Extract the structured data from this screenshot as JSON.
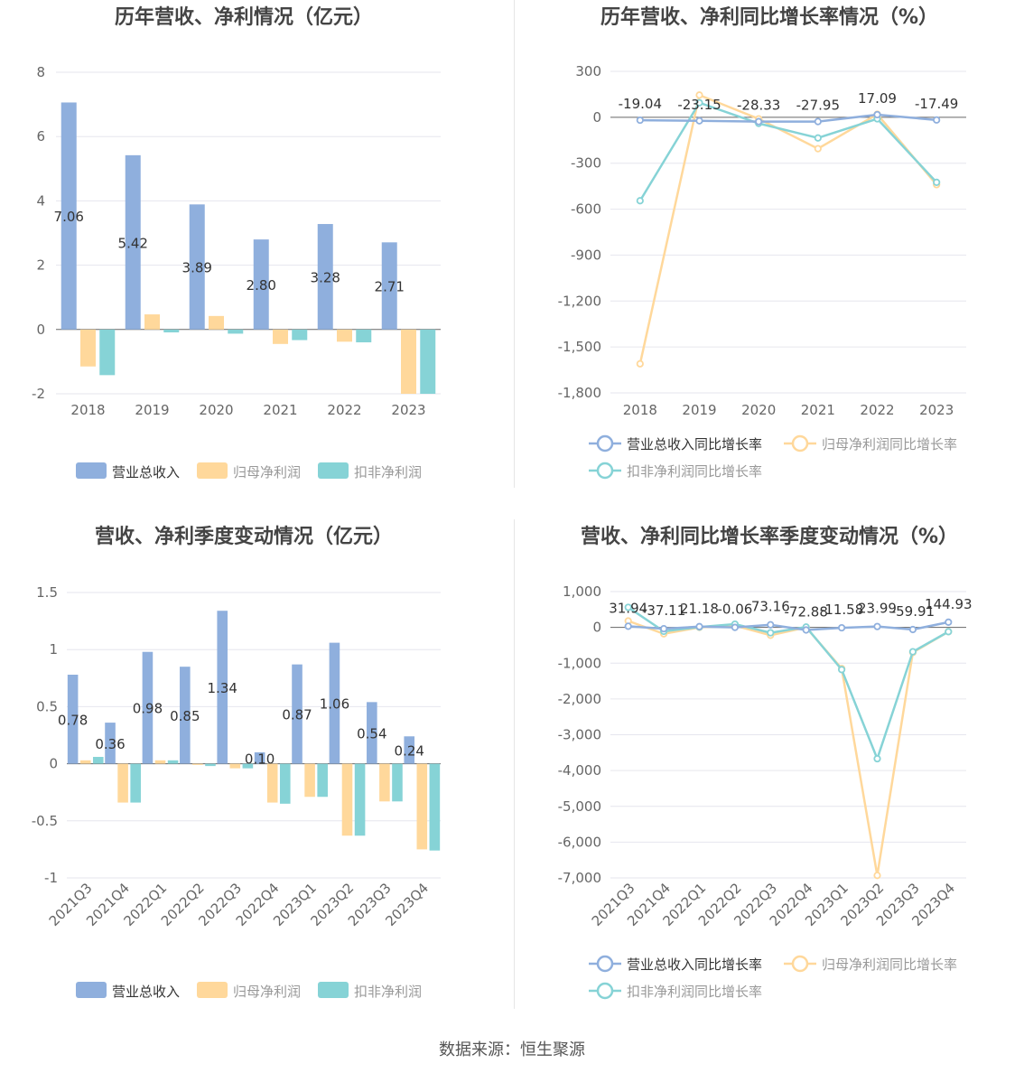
{
  "source_text": "数据来源：恒生聚源",
  "colors": {
    "revenue": "#8fafdd",
    "net_profit": "#ffd89b",
    "deducted_profit": "#86d3d6",
    "grid": "#e6e6ee",
    "axis_text": "#666666",
    "title": "#444444"
  },
  "chart_data": [
    {
      "id": "annual-amount",
      "type": "bar",
      "title": "历年营收、净利情况（亿元）",
      "categories": [
        "2018",
        "2019",
        "2020",
        "2021",
        "2022",
        "2023"
      ],
      "ylim": [
        -2,
        8
      ],
      "yticks": [
        -2,
        0,
        2,
        4,
        6,
        8
      ],
      "ytick_labels": [
        "-2",
        "0",
        "2",
        "4",
        "6",
        "8"
      ],
      "series": [
        {
          "name": "营业总收入",
          "values": [
            7.06,
            5.42,
            3.89,
            2.8,
            3.28,
            2.71
          ],
          "labels": [
            "7.06",
            "5.42",
            "3.89",
            "2.80",
            "3.28",
            "2.71"
          ]
        },
        {
          "name": "归母净利润",
          "values": [
            -1.15,
            0.47,
            0.42,
            -0.45,
            -0.38,
            -2.0
          ]
        },
        {
          "name": "扣非净利润",
          "values": [
            -1.42,
            -0.09,
            -0.13,
            -0.33,
            -0.4,
            -2.0
          ]
        }
      ],
      "legend_position": "bottom",
      "grid": true
    },
    {
      "id": "annual-growth",
      "type": "line",
      "title": "历年营收、净利同比增长率情况（%）",
      "categories": [
        "2018",
        "2019",
        "2020",
        "2021",
        "2022",
        "2023"
      ],
      "ylim": [
        -1800,
        300
      ],
      "yticks": [
        -1800,
        -1500,
        -1200,
        -900,
        -600,
        -300,
        0,
        300
      ],
      "ytick_labels": [
        "-1,800",
        "-1,500",
        "-1,200",
        "-900",
        "-600",
        "-300",
        "0",
        "300"
      ],
      "series": [
        {
          "name": "营业总收入同比增长率",
          "values": [
            -19.04,
            -23.15,
            -28.33,
            -27.95,
            17.09,
            -17.49
          ],
          "labels": [
            "-19.04",
            "-23.15",
            "-28.33",
            "-27.95",
            "17.09",
            "-17.49"
          ]
        },
        {
          "name": "归母净利润同比增长率",
          "values": [
            -1610,
            145,
            -10,
            -205,
            20,
            -440
          ]
        },
        {
          "name": "扣非净利润同比增长率",
          "values": [
            -545,
            95,
            -40,
            -135,
            -10,
            -425
          ]
        }
      ],
      "legend_position": "bottom",
      "grid": true
    },
    {
      "id": "quarterly-amount",
      "type": "bar",
      "title": "营收、净利季度变动情况（亿元）",
      "categories": [
        "2021Q3",
        "2021Q4",
        "2022Q1",
        "2022Q2",
        "2022Q3",
        "2022Q4",
        "2023Q1",
        "2023Q2",
        "2023Q3",
        "2023Q4"
      ],
      "ylim": [
        -1,
        1.5
      ],
      "yticks": [
        -1,
        -0.5,
        0,
        0.5,
        1,
        1.5
      ],
      "ytick_labels": [
        "-1",
        "-0.5",
        "0",
        "0.5",
        "1",
        "1.5"
      ],
      "series": [
        {
          "name": "营业总收入",
          "values": [
            0.78,
            0.36,
            0.98,
            0.85,
            1.34,
            0.1,
            0.87,
            1.06,
            0.54,
            0.24
          ],
          "labels": [
            "0.78",
            "0.36",
            "0.98",
            "0.85",
            "1.34",
            "0.10",
            "0.87",
            "1.06",
            "0.54",
            "0.24"
          ]
        },
        {
          "name": "归母净利润",
          "values": [
            0.03,
            -0.34,
            0.03,
            -0.01,
            -0.04,
            -0.34,
            -0.29,
            -0.63,
            -0.33,
            -0.75
          ]
        },
        {
          "name": "扣非净利润",
          "values": [
            0.06,
            -0.34,
            0.03,
            -0.02,
            -0.04,
            -0.35,
            -0.29,
            -0.63,
            -0.33,
            -0.76
          ]
        }
      ],
      "legend_position": "bottom",
      "grid": true
    },
    {
      "id": "quarterly-growth",
      "type": "line",
      "title": "营收、净利同比增长率季度变动情况（%）",
      "categories": [
        "2021Q3",
        "2021Q4",
        "2022Q1",
        "2022Q2",
        "2022Q3",
        "2022Q4",
        "2023Q1",
        "2023Q2",
        "2023Q3",
        "2023Q4"
      ],
      "ylim": [
        -7000,
        1000
      ],
      "yticks": [
        -7000,
        -6000,
        -5000,
        -4000,
        -3000,
        -2000,
        -1000,
        0,
        1000
      ],
      "ytick_labels": [
        "-7,000",
        "-6,000",
        "-5,000",
        "-4,000",
        "-3,000",
        "-2,000",
        "-1,000",
        "0",
        "1,000"
      ],
      "series": [
        {
          "name": "营业总收入同比增长率",
          "values": [
            31.94,
            -37.11,
            21.18,
            -0.06,
            73.16,
            -72.88,
            -11.58,
            23.99,
            -59.91,
            144.93
          ],
          "labels": [
            "31.94",
            "-37.11",
            "21.18",
            "-0.06",
            "73.16",
            "-72.88",
            "-11.58",
            "23.99",
            "-59.91",
            "144.93"
          ]
        },
        {
          "name": "归母净利润同比增长率",
          "values": [
            180,
            -180,
            0,
            50,
            -220,
            0,
            -1150,
            -6930,
            -700,
            -120
          ]
        },
        {
          "name": "扣非净利润同比增长率",
          "values": [
            560,
            -110,
            10,
            90,
            -150,
            10,
            -1180,
            -3670,
            -680,
            -120
          ]
        }
      ],
      "legend_position": "bottom",
      "grid": true
    }
  ]
}
